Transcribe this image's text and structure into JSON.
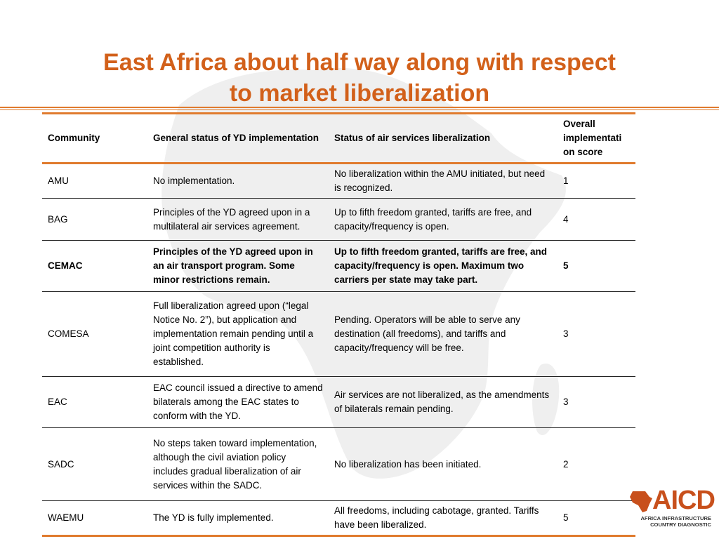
{
  "slide": {
    "title_line1": "East Africa about half way along with respect",
    "title_line2": "to market liberalization",
    "accent_color": "#d2601a",
    "rule_color": "#e07b2e"
  },
  "table": {
    "headers": [
      "Community",
      "General status of YD implementation",
      "Status of air services liberalization",
      "Overall implementati on score"
    ],
    "rows": [
      {
        "community": "AMU",
        "general_status": "No implementation.",
        "air_services_status": "No liberalization within the AMU initiated, but need is recognized.",
        "score": "1",
        "bold": false
      },
      {
        "community": "BAG",
        "general_status": "Principles of the YD agreed upon in a multilateral air services agreement.",
        "air_services_status": "Up to fifth freedom granted, tariffs are free, and capacity/frequency is open.",
        "score": "4",
        "bold": false
      },
      {
        "community": "CEMAC",
        "general_status": "Principles of the YD agreed upon in an air transport program. Some minor restrictions remain.",
        "air_services_status": "Up to fifth freedom granted, tariffs are free, and capacity/frequency is open. Maximum two carriers per state may take part.",
        "score": "5",
        "bold": true
      },
      {
        "community": "COMESA",
        "general_status": "Full liberalization agreed upon (“legal Notice No. 2”), but application and implementation remain pending until a joint competition authority is established.",
        "air_services_status": "Pending. Operators will be able to serve any destination (all freedoms), and tariffs and capacity/frequency will be free.",
        "score": "3",
        "bold": false
      },
      {
        "community": "EAC",
        "general_status": "EAC council issued a directive to amend bilaterals among the EAC states to conform with the YD.",
        "air_services_status": "Air services are not liberalized, as the amendments of bilaterals remain pending.",
        "score": "3",
        "bold": false
      },
      {
        "community": "SADC",
        "general_status": "No steps taken toward implementation, although the civil aviation policy includes gradual liberalization of air services within the SADC.",
        "air_services_status": "No liberalization has been initiated.",
        "score": "2",
        "bold": false
      },
      {
        "community": "WAEMU",
        "general_status": "The YD is fully implemented.",
        "air_services_status": "All freedoms, including cabotage, granted. Tariffs have been liberalized.",
        "score": "5",
        "bold": false
      }
    ]
  },
  "logo": {
    "name": "AICD",
    "subtitle_line1": "AFRICA INFRASTRUCTURE",
    "subtitle_line2": "COUNTRY DIAGNOSTIC",
    "color": "#c8501c"
  },
  "background": {
    "map_icon": "africa-map-silhouette",
    "map_color": "#ececec"
  }
}
